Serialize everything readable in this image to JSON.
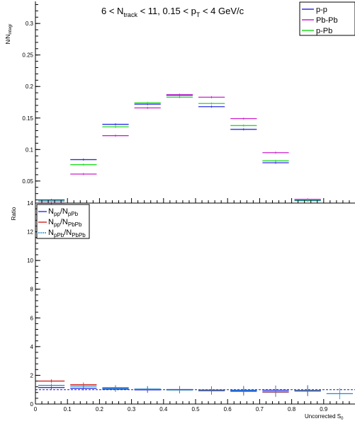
{
  "chart_data": [
    {
      "type": "histogram",
      "title": {
        "a": "6 < N",
        "a_sub": "track",
        "b": " < 11, 0.15 < p",
        "b_sub": "T",
        "c": " < 4 GeV/c"
      },
      "ylabel": {
        "main": "N/N",
        "sub": "integr"
      },
      "xlim": [
        0,
        1.0
      ],
      "ylim": [
        0.015,
        0.335
      ],
      "x_ticks": [
        "0",
        "0.1",
        "0.2",
        "0.3",
        "0.4",
        "0.5",
        "0.6",
        "0.7",
        "0.8",
        "0.9"
      ],
      "y_ticks": [
        0.05,
        0.1,
        0.15,
        0.2,
        0.25,
        0.3
      ],
      "y_tick_labels": [
        "0.05",
        "0.1",
        "0.15",
        "0.2",
        "0.25",
        "0.3"
      ],
      "bin_edges": [
        0,
        0.1,
        0.2,
        0.3,
        0.4,
        0.5,
        0.6,
        0.7,
        0.8,
        0.9,
        1.0
      ],
      "series": [
        {
          "name": "p-p",
          "color": "#2d2de6",
          "values": [
            0.02,
            0.084,
            0.14,
            0.172,
            0.186,
            0.168,
            0.132,
            0.079,
            0.019,
            null
          ]
        },
        {
          "name": "Pb-Pb",
          "color": "#cc22cc",
          "values": [
            0.015,
            0.061,
            0.122,
            0.166,
            0.187,
            0.183,
            0.149,
            0.095,
            0.021,
            null
          ]
        },
        {
          "name": "p-Pb",
          "color": "#22dd22",
          "values": [
            0.018,
            0.076,
            0.136,
            0.174,
            0.183,
            0.173,
            0.138,
            0.082,
            0.02,
            null
          ]
        }
      ],
      "legend": {
        "position": "top-right",
        "entries": [
          "p-p",
          "Pb-Pb",
          "p-Pb"
        ]
      },
      "grid": false
    },
    {
      "type": "histogram",
      "ylabel": "Ratio",
      "xlabel": {
        "main": "Uncorrected S",
        "sub": "0"
      },
      "xlim": [
        0,
        1.0
      ],
      "ylim": [
        0,
        14
      ],
      "x_ticks": [
        "0",
        "0.1",
        "0.2",
        "0.3",
        "0.4",
        "0.5",
        "0.6",
        "0.7",
        "0.8",
        "0.9"
      ],
      "y_ticks": [
        0,
        2,
        4,
        6,
        8,
        10,
        12,
        14
      ],
      "y_tick_labels": [
        "0",
        "2",
        "4",
        "6",
        "8",
        "10",
        "12",
        "14"
      ],
      "bin_edges": [
        0,
        0.1,
        0.2,
        0.3,
        0.4,
        0.5,
        0.6,
        0.7,
        0.8,
        0.9,
        1.0
      ],
      "reference_line": 1,
      "series": [
        {
          "name": {
            "a": "N",
            "a_sub": "pp",
            "b": "/N",
            "b_sub": "pPb"
          },
          "color": "#2d2de6",
          "values": [
            1.15,
            1.1,
            1.03,
            0.99,
            1.01,
            0.97,
            0.96,
            0.96,
            0.95,
            null
          ]
        },
        {
          "name": {
            "a": "N",
            "a_sub": "pp",
            "b": "/N",
            "b_sub": "PbPb"
          },
          "color": "#cc2222",
          "values": [
            1.6,
            1.35,
            1.13,
            1.03,
            0.99,
            0.92,
            0.88,
            0.83,
            0.9,
            null
          ]
        },
        {
          "name": {
            "a": "N",
            "a_sub": "pPb",
            "b": "/N",
            "b_sub": "PbPb"
          },
          "color": "#2288cc",
          "values": [
            1.3,
            1.25,
            1.1,
            1.04,
            0.98,
            0.95,
            0.92,
            0.86,
            0.95,
            0.72
          ]
        }
      ],
      "legend": {
        "position": "top-left"
      },
      "grid": false
    }
  ]
}
